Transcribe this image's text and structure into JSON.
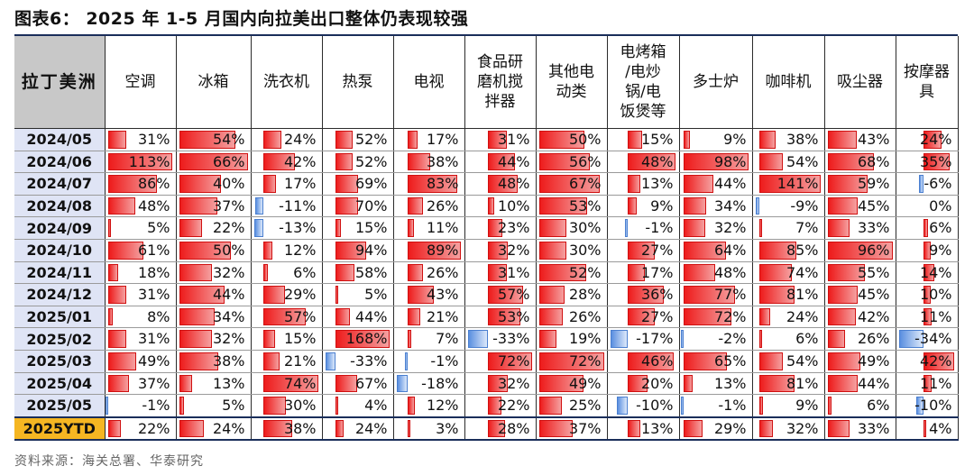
{
  "title": "图表6： 2025 年 1-5 月国内向拉美出口整体仍表现较强",
  "source": "资料来源：海关总署、华泰研究",
  "chart_data": {
    "type": "table",
    "corner_label": "拉丁美洲",
    "columns": [
      "空调",
      "冰箱",
      "洗衣机",
      "热泵",
      "电视",
      "食品研磨机搅拌器",
      "其他电动类",
      "电烤箱/电炒锅/电饭煲等",
      "多士炉",
      "咖啡机",
      "吸尘器",
      "按摩器具"
    ],
    "column_labels_display": [
      [
        "空调"
      ],
      [
        "冰箱"
      ],
      [
        "洗衣机"
      ],
      [
        "热泵"
      ],
      [
        "电视"
      ],
      [
        "食品研",
        "磨机搅",
        "拌器"
      ],
      [
        "其他电",
        "动类"
      ],
      [
        "电烤箱",
        "/电炒",
        "锅/电",
        "饭煲等"
      ],
      [
        "多士炉"
      ],
      [
        "咖啡机"
      ],
      [
        "吸尘器"
      ],
      [
        "按摩器",
        "具"
      ]
    ],
    "unit": "%",
    "rows": [
      {
        "period": "2024/05",
        "values": [
          31,
          54,
          24,
          52,
          17,
          31,
          50,
          15,
          9,
          38,
          43,
          24
        ]
      },
      {
        "period": "2024/06",
        "values": [
          113,
          66,
          42,
          52,
          38,
          44,
          56,
          48,
          98,
          54,
          68,
          35
        ]
      },
      {
        "period": "2024/07",
        "values": [
          86,
          40,
          17,
          69,
          83,
          48,
          67,
          13,
          44,
          141,
          59,
          -6
        ]
      },
      {
        "period": "2024/08",
        "values": [
          48,
          37,
          -11,
          70,
          26,
          10,
          53,
          9,
          34,
          -9,
          45,
          0
        ]
      },
      {
        "period": "2024/09",
        "values": [
          5,
          22,
          -13,
          15,
          11,
          23,
          30,
          -1,
          32,
          7,
          33,
          6
        ]
      },
      {
        "period": "2024/10",
        "values": [
          61,
          50,
          12,
          94,
          89,
          32,
          30,
          27,
          64,
          85,
          96,
          9
        ]
      },
      {
        "period": "2024/11",
        "values": [
          18,
          32,
          6,
          58,
          26,
          31,
          52,
          17,
          48,
          74,
          55,
          14
        ]
      },
      {
        "period": "2024/12",
        "values": [
          31,
          44,
          29,
          5,
          43,
          57,
          28,
          36,
          77,
          81,
          45,
          10
        ]
      },
      {
        "period": "2025/01",
        "values": [
          8,
          34,
          57,
          44,
          21,
          53,
          26,
          27,
          72,
          24,
          42,
          11
        ]
      },
      {
        "period": "2025/02",
        "values": [
          31,
          32,
          15,
          168,
          7,
          -33,
          19,
          -17,
          -2,
          6,
          26,
          -34
        ]
      },
      {
        "period": "2025/03",
        "values": [
          49,
          38,
          21,
          -33,
          -1,
          72,
          72,
          46,
          65,
          54,
          49,
          42
        ]
      },
      {
        "period": "2025/04",
        "values": [
          37,
          13,
          74,
          67,
          -18,
          32,
          49,
          20,
          13,
          81,
          44,
          11
        ]
      },
      {
        "period": "2025/05",
        "values": [
          -1,
          5,
          30,
          4,
          12,
          22,
          25,
          -10,
          -1,
          9,
          6,
          -10
        ]
      },
      {
        "period": "2025YTD",
        "values": [
          22,
          24,
          38,
          24,
          3,
          28,
          37,
          13,
          29,
          32,
          33,
          4
        ]
      }
    ]
  }
}
